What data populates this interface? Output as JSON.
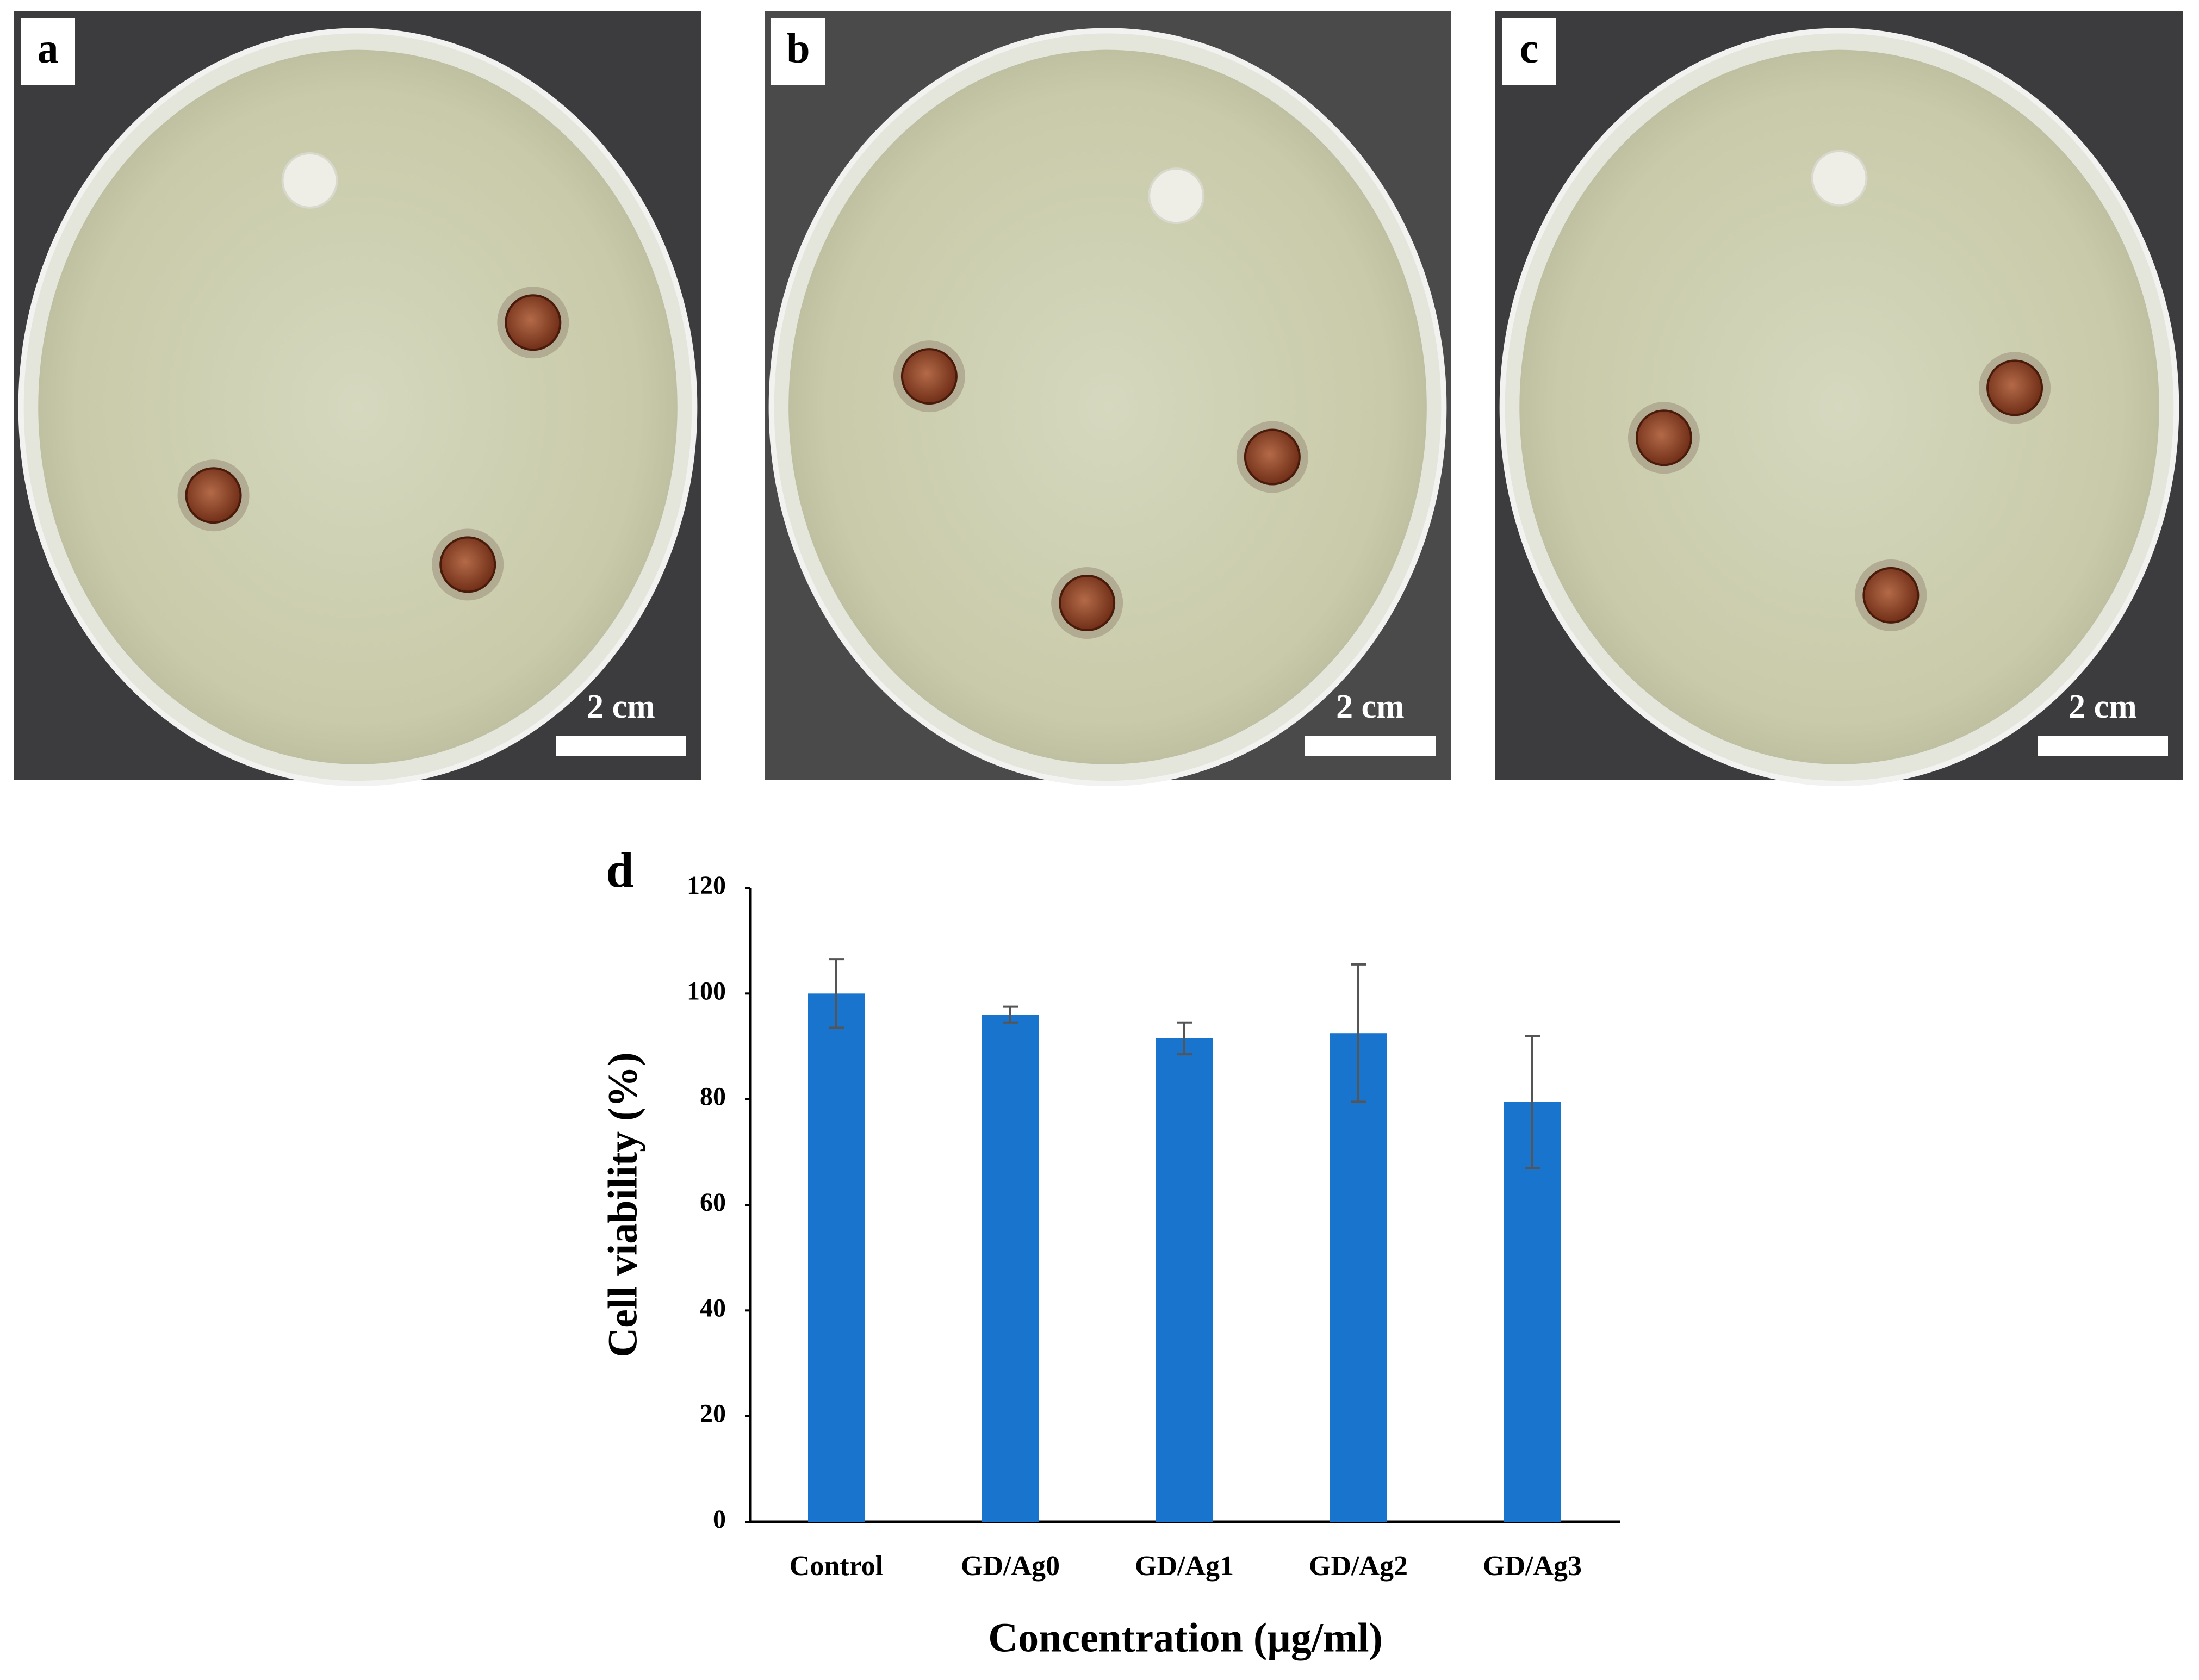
{
  "panels": [
    {
      "label": "a",
      "scale_bar": "2 cm"
    },
    {
      "label": "b",
      "scale_bar": "2 cm"
    },
    {
      "label": "c",
      "scale_bar": "2 cm"
    }
  ],
  "chart_data": {
    "type": "bar",
    "panel_label": "d",
    "x_label": "Concentration  (µg/ml)",
    "y_label": "Cell viability  (%)",
    "categories": [
      "Control",
      "GD/Ag0",
      "GD/Ag1",
      "GD/Ag2",
      "GD/Ag3"
    ],
    "values": [
      100,
      96,
      91.5,
      92.5,
      79.5
    ],
    "errors": [
      6.5,
      1.5,
      3,
      13,
      12.5
    ],
    "color": "#1874cd",
    "ylim": [
      0,
      120
    ],
    "yticks": [
      0,
      20,
      40,
      60,
      80,
      100,
      120
    ],
    "grid": false
  }
}
